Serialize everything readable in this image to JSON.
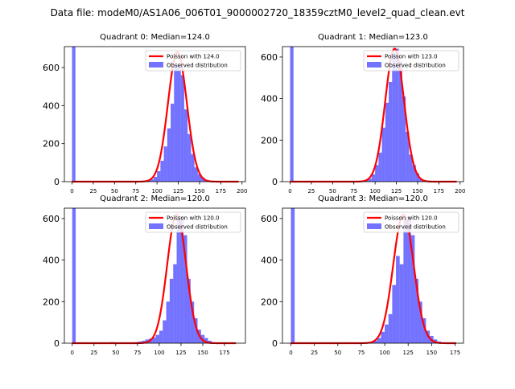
{
  "figure": {
    "suptitle": "Data file: modeM0/AS1A06_006T01_9000002720_18359cztM0_level2_quad_clean.evt"
  },
  "colors": {
    "hist": "#0000ff",
    "poisson": "#ff0000",
    "axis": "#000000"
  },
  "chart_data": [
    {
      "type": "bar",
      "title": "Quadrant 0: Median=124.0",
      "median": 124.0,
      "xlim": [
        -9,
        204
      ],
      "ylim": [
        0,
        710
      ],
      "xticks": [
        0,
        25,
        50,
        75,
        100,
        125,
        150,
        175,
        200
      ],
      "yticks": [
        0,
        200,
        400,
        600
      ],
      "bin_width": 4,
      "legend": [
        "Poisson with 124.0",
        "Observed distribution"
      ],
      "legend_loc": "upper right",
      "bins": [
        0,
        84,
        88,
        92,
        96,
        100,
        104,
        108,
        112,
        116,
        120,
        124,
        128,
        132,
        136,
        140,
        144,
        148,
        152,
        156,
        160
      ],
      "values": [
        710,
        2,
        6,
        12,
        25,
        55,
        110,
        185,
        280,
        410,
        610,
        620,
        560,
        380,
        250,
        145,
        75,
        40,
        22,
        9,
        4
      ],
      "poisson_mean": 124.0,
      "poisson_peak": 680,
      "poisson_range": [
        0,
        196
      ]
    },
    {
      "type": "bar",
      "title": "Quadrant 1: Median=123.0",
      "median": 123.0,
      "xlim": [
        -9,
        204
      ],
      "ylim": [
        0,
        650
      ],
      "xticks": [
        0,
        25,
        50,
        75,
        100,
        125,
        150,
        175,
        200
      ],
      "yticks": [
        0,
        200,
        400,
        600
      ],
      "bin_width": 4,
      "legend": [
        "Poisson with 123.0",
        "Observed distribution"
      ],
      "legend_loc": "upper right",
      "bins": [
        0,
        84,
        88,
        92,
        96,
        100,
        104,
        108,
        112,
        116,
        120,
        124,
        128,
        132,
        136,
        140,
        144,
        148,
        152,
        156,
        160
      ],
      "values": [
        650,
        3,
        8,
        14,
        35,
        80,
        140,
        260,
        380,
        480,
        620,
        640,
        580,
        410,
        240,
        130,
        80,
        40,
        15,
        8,
        3
      ],
      "poisson_mean": 123.0,
      "poisson_peak": 640,
      "poisson_range": [
        0,
        196
      ]
    },
    {
      "type": "bar",
      "title": "Quadrant 2: Median=120.0",
      "median": 120.0,
      "xlim": [
        -9,
        199
      ],
      "ylim": [
        0,
        650
      ],
      "xticks": [
        0,
        25,
        50,
        75,
        100,
        125,
        150,
        175
      ],
      "yticks": [
        0,
        200,
        400,
        600
      ],
      "bin_width": 4,
      "legend": [
        "Poisson with 120.0",
        "Observed distribution"
      ],
      "legend_loc": "upper right",
      "bins": [
        0,
        28,
        44,
        48,
        56,
        64,
        72,
        76,
        80,
        84,
        88,
        92,
        96,
        100,
        104,
        108,
        112,
        116,
        120,
        124,
        128,
        132,
        136,
        140,
        144,
        148,
        152,
        156,
        160
      ],
      "values": [
        650,
        2,
        5,
        3,
        4,
        3,
        5,
        8,
        12,
        18,
        22,
        28,
        40,
        60,
        110,
        200,
        310,
        380,
        600,
        610,
        520,
        310,
        200,
        120,
        65,
        40,
        25,
        12,
        5
      ],
      "poisson_mean": 120.0,
      "poisson_peak": 620,
      "poisson_range": [
        0,
        188
      ]
    },
    {
      "type": "bar",
      "title": "Quadrant 3: Median=120.0",
      "median": 120.0,
      "xlim": [
        -9,
        184
      ],
      "ylim": [
        0,
        650
      ],
      "xticks": [
        0,
        25,
        50,
        75,
        100,
        125,
        150,
        175
      ],
      "yticks": [
        0,
        200,
        400,
        600
      ],
      "bin_width": 4,
      "legend": [
        "Poisson with 120.0",
        "Observed distribution"
      ],
      "legend_loc": "upper right",
      "bins": [
        0,
        84,
        88,
        92,
        96,
        100,
        104,
        108,
        112,
        116,
        120,
        124,
        128,
        132,
        136,
        140,
        144,
        148,
        152,
        156
      ],
      "values": [
        650,
        5,
        12,
        25,
        55,
        90,
        140,
        280,
        420,
        380,
        600,
        610,
        520,
        310,
        200,
        120,
        60,
        35,
        18,
        8
      ],
      "poisson_mean": 120.0,
      "poisson_peak": 620,
      "poisson_range": [
        0,
        176
      ]
    }
  ]
}
